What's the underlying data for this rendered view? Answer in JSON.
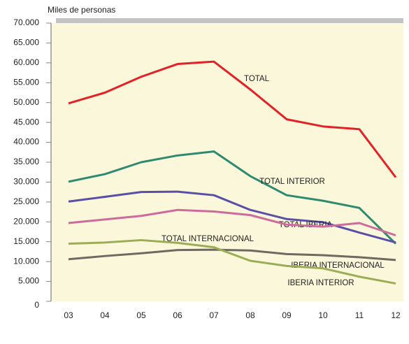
{
  "chart_data": {
    "type": "line",
    "y_label": "Miles de personas",
    "categories": [
      "03",
      "04",
      "05",
      "06",
      "07",
      "08",
      "09",
      "10",
      "11",
      "12"
    ],
    "series": [
      {
        "name": "TOTAL",
        "color": "#e32227",
        "values": [
          49800,
          52500,
          56500,
          59700,
          60300,
          53300,
          45800,
          44000,
          43300,
          31200
        ]
      },
      {
        "name": "TOTAL INTERIOR",
        "color": "#2f8a70",
        "values": [
          30100,
          32000,
          35000,
          36700,
          37700,
          31500,
          26700,
          25300,
          23500,
          14500
        ]
      },
      {
        "name": "TOTAL IBERIA",
        "color": "#5a4fa8",
        "values": [
          25100,
          26300,
          27500,
          27600,
          26700,
          23000,
          20700,
          19900,
          17300,
          14800
        ]
      },
      {
        "name": "TOTAL INTERNACIONAL",
        "color": "#cc6b9c",
        "values": [
          19700,
          20600,
          21500,
          23000,
          22600,
          21700,
          19300,
          18800,
          19700,
          16600
        ]
      },
      {
        "name": "IBERIA INTERNACIONAL",
        "color": "#6e6a62",
        "values": [
          10600,
          11400,
          12100,
          12900,
          13000,
          12800,
          11900,
          11600,
          11100,
          10400
        ]
      },
      {
        "name": "IBERIA INTERIOR",
        "color": "#9cad57",
        "values": [
          14500,
          14800,
          15400,
          14700,
          13600,
          10200,
          8900,
          8300,
          6200,
          4500
        ]
      }
    ],
    "ylim": [
      0,
      70000
    ],
    "yticks": [
      0,
      {
        "value": 5000,
        "label": "5.000"
      },
      {
        "value": 10000,
        "label": "10.000"
      },
      {
        "value": 15000,
        "label": "15.000"
      },
      {
        "value": 20000,
        "label": "20.000"
      },
      {
        "value": 25000,
        "label": "25.000"
      },
      {
        "value": 30000,
        "label": "30.000"
      },
      {
        "value": 35000,
        "label": "35.000"
      },
      {
        "value": 40000,
        "label": "40.000"
      },
      {
        "value": 45000,
        "label": "45.000"
      },
      {
        "value": 50000,
        "label": "50.000"
      },
      {
        "value": 55000,
        "label": "55.000"
      },
      {
        "value": 60000,
        "label": "60.000"
      },
      {
        "value": 65000,
        "label": "65.000"
      },
      {
        "value": 70000,
        "label": "70.000"
      }
    ],
    "grid": false
  }
}
